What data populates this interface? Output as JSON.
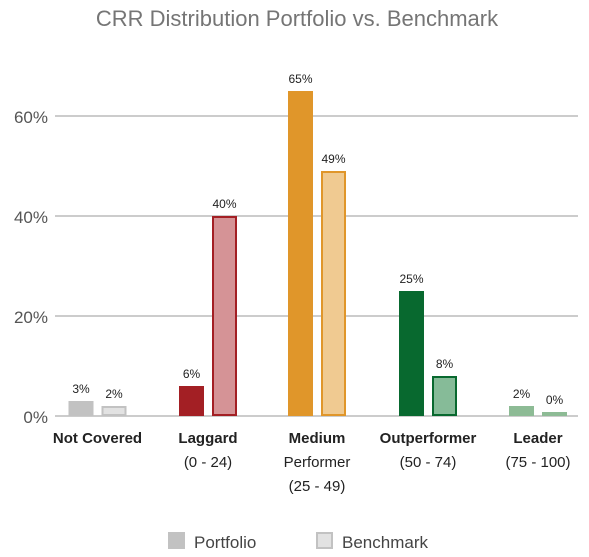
{
  "chart_data": {
    "type": "bar",
    "title": "CRR Distribution Portfolio vs. Benchmark",
    "xlabel": "",
    "ylabel": "",
    "ylim": [
      0,
      70
    ],
    "yticks": [
      "0%",
      "20%",
      "40%",
      "60%"
    ],
    "ytick_values": [
      0,
      20,
      40,
      60
    ],
    "grid": true,
    "legend_position": "bottom",
    "categories": [
      {
        "lines": [
          "Not Covered"
        ]
      },
      {
        "lines": [
          "Laggard",
          "(0 - 24)"
        ]
      },
      {
        "lines": [
          "Medium",
          "Performer",
          "(25 - 49)"
        ]
      },
      {
        "lines": [
          "Outperformer",
          "(50 - 74)"
        ]
      },
      {
        "lines": [
          "Leader",
          "(75 - 100)"
        ]
      }
    ],
    "series": [
      {
        "name": "Portfolio",
        "values": [
          3,
          6,
          65,
          25,
          2
        ],
        "labels": [
          "3%",
          "6%",
          "65%",
          "25%",
          "2%"
        ]
      },
      {
        "name": "Benchmark",
        "values": [
          2,
          40,
          49,
          8,
          0
        ],
        "labels": [
          "2%",
          "40%",
          "49%",
          "8%",
          "0%"
        ]
      }
    ],
    "colors": {
      "portfolio": [
        "#c2c2c2",
        "#a31f24",
        "#e0962a",
        "#08692f",
        "#8dbb95"
      ],
      "benchmark_fill": [
        "#e2e2e2",
        "#d59396",
        "#f0ca91",
        "#86bb98",
        "#c2dcc8"
      ],
      "benchmark_stroke": [
        "#c2c2c2",
        "#a31f24",
        "#e0962a",
        "#08692f",
        "#8dbb95"
      ],
      "legend_portfolio": "#c2c2c2",
      "legend_benchmark_fill": "#e2e2e2",
      "legend_benchmark_stroke": "#c2c2c2",
      "grid": "#cccccc"
    }
  }
}
